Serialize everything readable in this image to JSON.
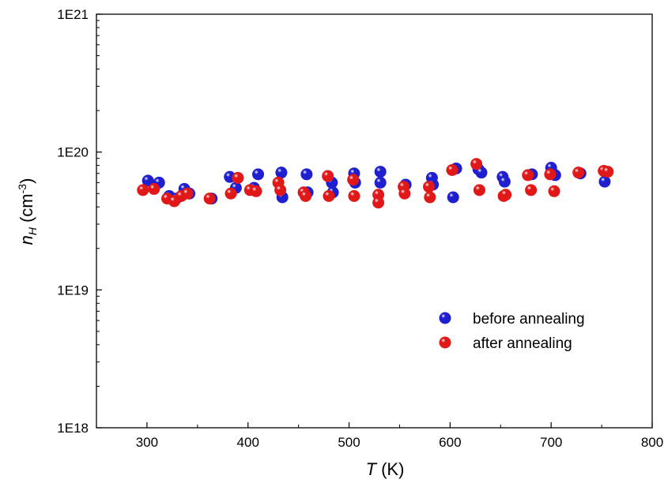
{
  "chart_data": {
    "type": "scatter",
    "title": "",
    "xlabel": {
      "symbol": "T",
      "unit": "(K)"
    },
    "ylabel": {
      "symbol": "n",
      "subscript": "H",
      "unit_prefix": "(cm",
      "unit_exp": "-3",
      "unit_suffix": ")"
    },
    "xlim": [
      250,
      800
    ],
    "ylim": [
      1e+18,
      1e+21
    ],
    "yscale": "log",
    "grid": false,
    "legend_position": "center-right",
    "x_ticks": [
      300,
      400,
      500,
      600,
      700,
      800
    ],
    "x_tick_labels": [
      "300",
      "400",
      "500",
      "600",
      "700",
      "800"
    ],
    "y_ticks": [
      1e+18,
      1e+19,
      1e+20,
      1e+21
    ],
    "y_tick_labels": [
      "1E18",
      "1E19",
      "1E20",
      "1E21"
    ],
    "series": [
      {
        "name": "before annealing",
        "color": "#1f1fd0",
        "points": [
          [
            301,
            6.2e+19
          ],
          [
            312,
            6e+19
          ],
          [
            322,
            4.8e+19
          ],
          [
            329,
            4.6e+19
          ],
          [
            337,
            5.4e+19
          ],
          [
            342,
            5e+19
          ],
          [
            364,
            4.6e+19
          ],
          [
            382,
            6.6e+19
          ],
          [
            388,
            5.5e+19
          ],
          [
            406,
            5.5e+19
          ],
          [
            410,
            6.9e+19
          ],
          [
            433,
            7.1e+19
          ],
          [
            434,
            4.7e+19
          ],
          [
            458,
            6.9e+19
          ],
          [
            459,
            5.1e+19
          ],
          [
            483,
            6e+19
          ],
          [
            484,
            5.1e+19
          ],
          [
            505,
            7e+19
          ],
          [
            506,
            6e+19
          ],
          [
            531,
            7.2e+19
          ],
          [
            531,
            6e+19
          ],
          [
            556,
            5.8e+19
          ],
          [
            582,
            6.5e+19
          ],
          [
            583,
            5.8e+19
          ],
          [
            603,
            4.7e+19
          ],
          [
            606,
            7.6e+19
          ],
          [
            628,
            7.5e+19
          ],
          [
            631,
            7.1e+19
          ],
          [
            652,
            6.6e+19
          ],
          [
            654,
            6.1e+19
          ],
          [
            681,
            6.9e+19
          ],
          [
            700,
            7.7e+19
          ],
          [
            704,
            6.8e+19
          ],
          [
            729,
            7e+19
          ],
          [
            753,
            6.1e+19
          ]
        ]
      },
      {
        "name": "after annealing",
        "color": "#e01818",
        "points": [
          [
            296,
            5.3e+19
          ],
          [
            307,
            5.4e+19
          ],
          [
            320,
            4.6e+19
          ],
          [
            327,
            4.4e+19
          ],
          [
            334,
            4.8e+19
          ],
          [
            340,
            5e+19
          ],
          [
            362,
            4.6e+19
          ],
          [
            383,
            5e+19
          ],
          [
            390,
            6.5e+19
          ],
          [
            402,
            5.3e+19
          ],
          [
            408,
            5.2e+19
          ],
          [
            430,
            6e+19
          ],
          [
            432,
            5.3e+19
          ],
          [
            455,
            5.1e+19
          ],
          [
            457,
            4.8e+19
          ],
          [
            479,
            6.7e+19
          ],
          [
            480,
            4.8e+19
          ],
          [
            504,
            6.3e+19
          ],
          [
            505,
            4.8e+19
          ],
          [
            529,
            4.9e+19
          ],
          [
            529,
            4.3e+19
          ],
          [
            554,
            5.6e+19
          ],
          [
            555,
            5e+19
          ],
          [
            579,
            5.6e+19
          ],
          [
            580,
            4.7e+19
          ],
          [
            602,
            7.4e+19
          ],
          [
            626,
            8.2e+19
          ],
          [
            629,
            5.3e+19
          ],
          [
            653,
            4.8e+19
          ],
          [
            655,
            4.9e+19
          ],
          [
            677,
            6.8e+19
          ],
          [
            680,
            5.3e+19
          ],
          [
            699,
            6.9e+19
          ],
          [
            703,
            5.2e+19
          ],
          [
            727,
            7.1e+19
          ],
          [
            752,
            7.3e+19
          ],
          [
            756,
            7.2e+19
          ]
        ]
      }
    ]
  }
}
